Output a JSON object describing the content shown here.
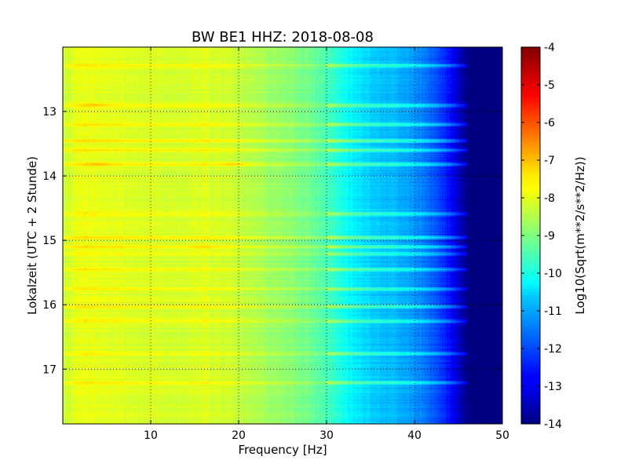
{
  "chart_data": {
    "type": "heatmap",
    "title": "BW BE1 HHZ: 2018-08-08",
    "xlabel": "Frequency [Hz]",
    "ylabel": "Lokalzeit (UTC + 2 Stunde)",
    "xlim": [
      0,
      50
    ],
    "ylim": [
      12.0,
      17.85
    ],
    "y_inverted": true,
    "x_ticks": [
      "10",
      "20",
      "30",
      "40",
      "50"
    ],
    "y_ticks": [
      "13",
      "14",
      "15",
      "16",
      "17"
    ],
    "grid": true,
    "colormap": "jet",
    "colorbar": {
      "label": "Log10(Sqrt(m**2/s**2/Hz))",
      "range": [
        -14,
        -4
      ],
      "ticks": [
        "-4",
        "-5",
        "-6",
        "-7",
        "-8",
        "-9",
        "-10",
        "-11",
        "-12",
        "-13",
        "-14"
      ]
    },
    "spectrum_profile": {
      "frequency_hz": [
        0,
        2,
        4,
        8,
        12,
        16,
        20,
        24,
        28,
        31,
        33,
        36,
        38,
        40,
        42,
        44,
        45,
        46,
        50
      ],
      "log10_amplitude": [
        -8.3,
        -7.9,
        -8.0,
        -8.1,
        -8.2,
        -8.1,
        -8.3,
        -8.7,
        -9.1,
        -9.8,
        -10.4,
        -10.8,
        -11.0,
        -11.3,
        -11.8,
        -12.6,
        -13.3,
        -14.0,
        -14.0
      ]
    },
    "noisy_times_h": [
      12.28,
      12.9,
      13.2,
      13.45,
      13.6,
      13.82,
      14.58,
      14.95,
      15.1,
      15.2,
      15.45,
      15.75,
      16.02,
      16.25,
      16.75,
      17.2
    ],
    "hot_spots": [
      {
        "frequency_hz": 3.5,
        "time_h": 12.9,
        "log10_amplitude": -7.2
      },
      {
        "frequency_hz": 4.0,
        "time_h": 13.82,
        "log10_amplitude": -7.1
      },
      {
        "frequency_hz": 19.5,
        "time_h": 13.82,
        "log10_amplitude": -7.3
      },
      {
        "frequency_hz": 16.0,
        "time_h": 15.1,
        "log10_amplitude": -7.4
      }
    ]
  }
}
